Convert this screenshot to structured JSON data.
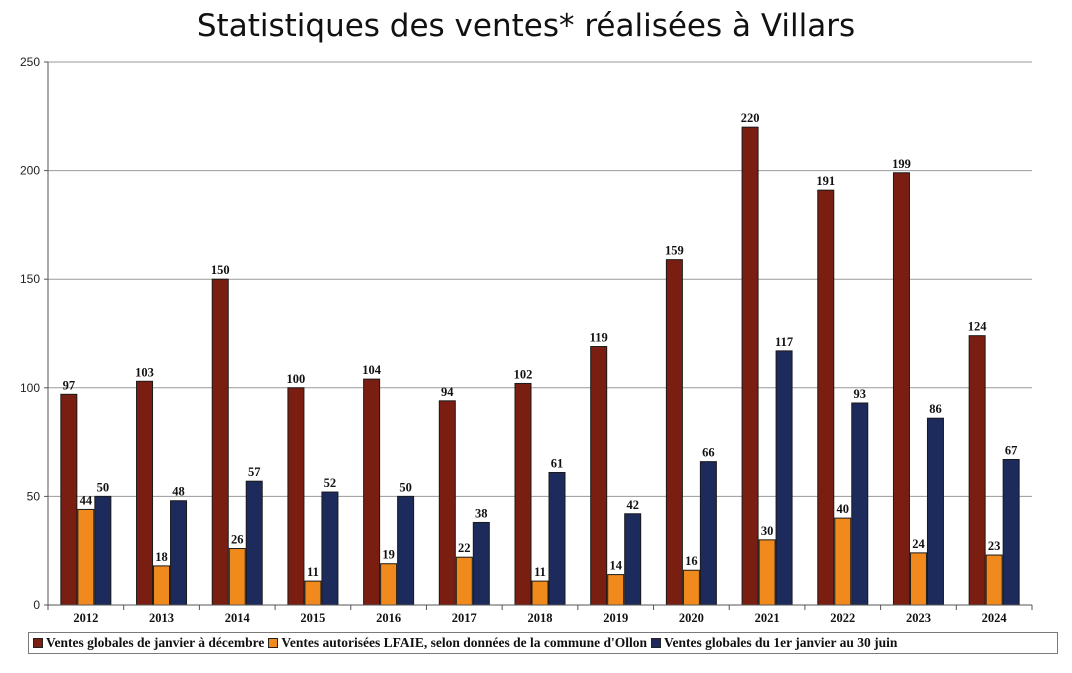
{
  "chart_data": {
    "type": "bar",
    "title": "Statistiques des ventes* réalisées à Villars",
    "xlabel": "",
    "ylabel": "",
    "ylim": [
      0,
      250
    ],
    "yticks": [
      0,
      50,
      100,
      150,
      200,
      250
    ],
    "grid": true,
    "legend_position": "bottom",
    "categories": [
      "2012",
      "2013",
      "2014",
      "2015",
      "2016",
      "2017",
      "2018",
      "2019",
      "2020",
      "2021",
      "2022",
      "2023",
      "2024"
    ],
    "series": [
      {
        "name": "Ventes globales de janvier à décembre",
        "color": "#7b1e12",
        "values": [
          97,
          103,
          150,
          100,
          104,
          94,
          102,
          119,
          159,
          220,
          191,
          199,
          124
        ]
      },
      {
        "name": "Ventes autorisées LFAIE, selon données de la commune d'Ollon",
        "color": "#f08a1c",
        "values": [
          44,
          18,
          26,
          11,
          19,
          22,
          11,
          14,
          16,
          30,
          40,
          24,
          23
        ]
      },
      {
        "name": "Ventes globales du 1er janvier au 30 juin",
        "color": "#1c2a5c",
        "values": [
          50,
          48,
          57,
          52,
          50,
          38,
          61,
          42,
          66,
          117,
          93,
          86,
          67
        ]
      }
    ]
  }
}
